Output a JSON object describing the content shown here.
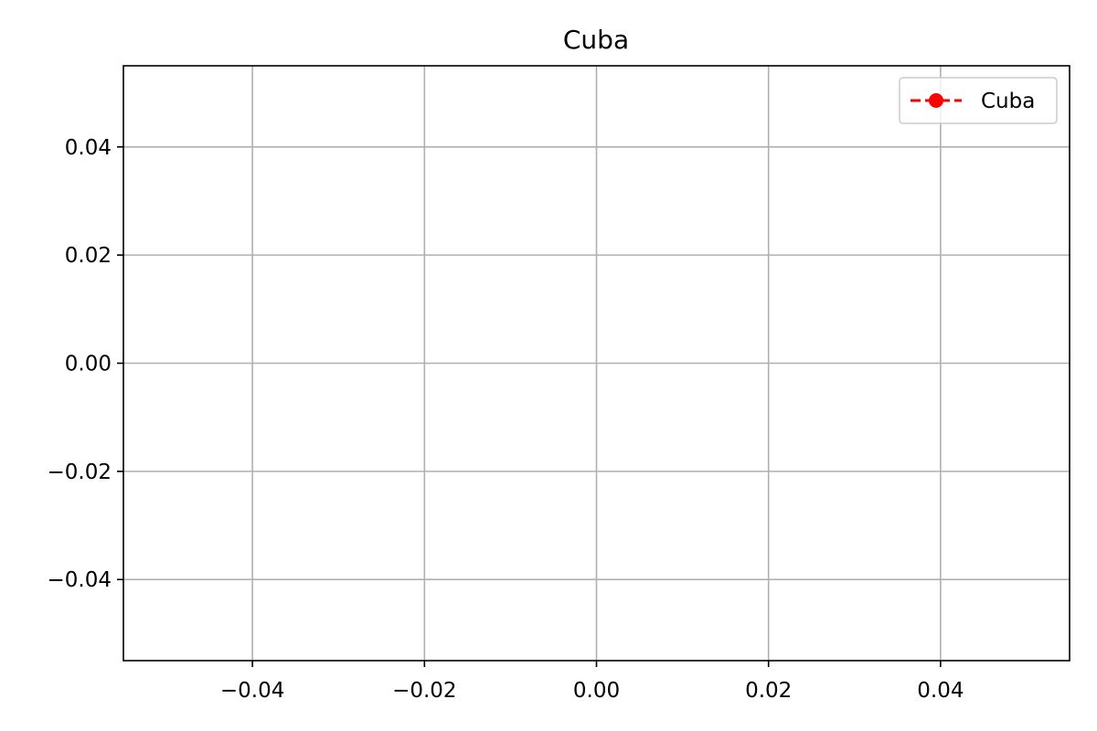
{
  "chart_data": {
    "type": "line",
    "title": "Cuba",
    "xlabel": "",
    "ylabel": "",
    "xlim": [
      -0.055,
      0.055
    ],
    "ylim": [
      -0.055,
      0.055
    ],
    "x_ticks": [
      -0.04,
      -0.02,
      0.0,
      0.02,
      0.04
    ],
    "x_tick_labels": [
      "−0.04",
      "−0.02",
      "0.00",
      "0.02",
      "0.04"
    ],
    "y_ticks": [
      0.04,
      0.02,
      0.0,
      -0.02,
      -0.04
    ],
    "y_tick_labels": [
      "0.04",
      "0.02",
      "0.00",
      "−0.02",
      "−0.04"
    ],
    "grid": true,
    "legend_position": "top-right",
    "series": [
      {
        "name": "Cuba",
        "color": "#ff0000",
        "line_style": "dashed",
        "marker": "circle",
        "x": [],
        "y": []
      }
    ]
  }
}
